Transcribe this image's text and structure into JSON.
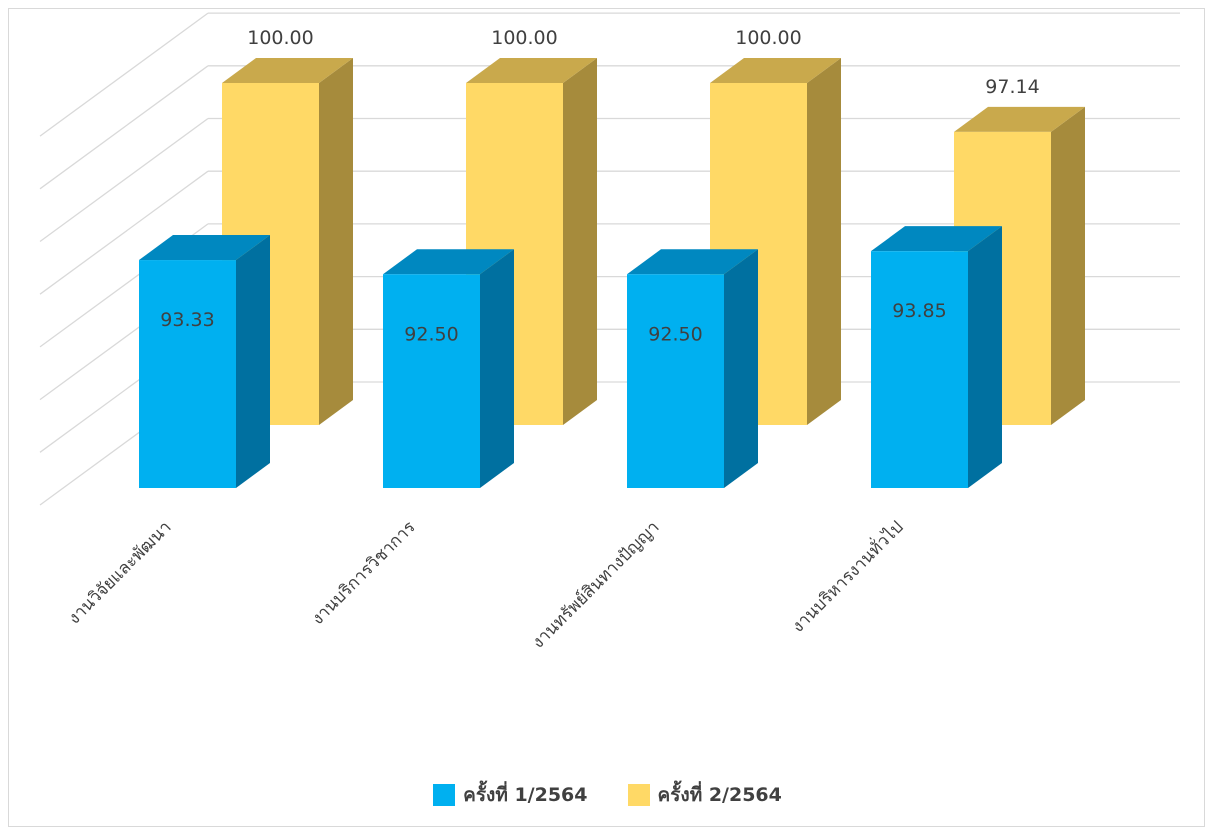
{
  "chart_data": {
    "type": "bar",
    "style": "3d-clustered-column",
    "title": "",
    "xlabel": "",
    "ylabel": "",
    "ylim": [
      80,
      100
    ],
    "grid": true,
    "legend_position": "bottom",
    "categories": [
      "งานวิจัยและพัฒนา",
      "งานบริการวิชาการ",
      "งานทรัพย์สินทางปัญญา",
      "งานบริหารงานทั่วไป"
    ],
    "series": [
      {
        "name": "ครั้งที่ 1/2564",
        "values": [
          93.33,
          92.5,
          92.5,
          93.85
        ],
        "labels": [
          "93.33",
          "92.50",
          "92.50",
          "93.85"
        ],
        "color": "#00b0f0",
        "color_side": "#0070a0",
        "color_top": "#0088c0"
      },
      {
        "name": "ครั้งที่ 2/2564",
        "values": [
          100.0,
          100.0,
          100.0,
          97.14
        ],
        "labels": [
          "100.00",
          "100.00",
          "100.00",
          "97.14"
        ],
        "color": "#ffd966",
        "color_side": "#a68b3c",
        "color_top": "#c9a94c"
      }
    ]
  }
}
